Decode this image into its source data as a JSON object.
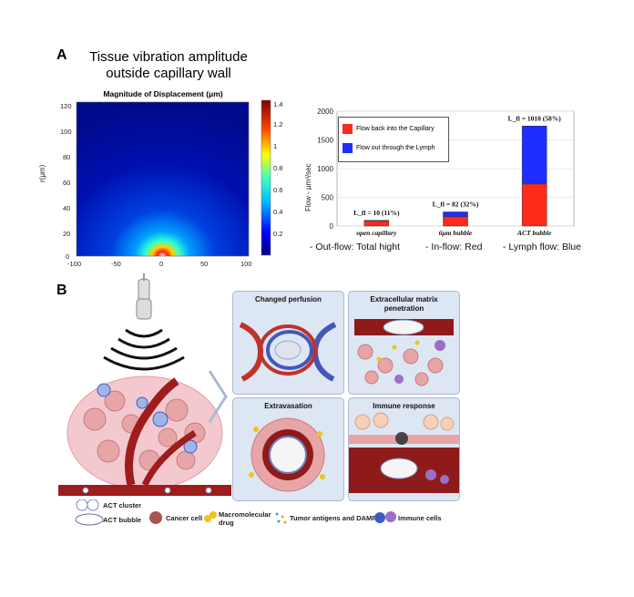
{
  "panelA": {
    "letter": "A",
    "title_line1": "Tissue vibration amplitude",
    "title_line2": "outside capillary wall",
    "heatmap": {
      "title": "Magnitude of Displacement (μm)",
      "ylabel": "r(μm)",
      "yticks": [
        "120",
        "100",
        "80",
        "60",
        "40",
        "20",
        "0"
      ],
      "xticks": [
        "-100",
        "-50",
        "0",
        "50",
        "100"
      ],
      "colorbar_ticks": [
        "1.4",
        "1.2",
        "1",
        "0.8",
        "0.6",
        "0.4",
        "0.2"
      ]
    },
    "notes": {
      "outflow": "- Out-flow: Total hight",
      "inflow": "- In-flow: Red",
      "lymph": "- Lymph flow: Blue"
    }
  },
  "chart_data": {
    "type": "bar",
    "stacked": true,
    "ylabel": "Flow  -  μm³/sec",
    "ylim": [
      0,
      2000
    ],
    "yticks": [
      "2000",
      "1500",
      "1000",
      "500",
      "0"
    ],
    "categories": [
      "open capillary",
      "6μm bubble",
      "ACT bubble"
    ],
    "series": [
      {
        "name": "Flow back into the Capillary",
        "color": "#ff2a1a",
        "values": [
          89,
          164,
          732
        ]
      },
      {
        "name": "Flow out through the Lymph",
        "color": "#1f2dff",
        "values": [
          10,
          82,
          1010
        ]
      }
    ],
    "annotations": [
      "L_fl = 10 (11%)",
      "L_fl = 82 (32%)",
      "L_fl = 1010 (58%)"
    ],
    "legend_position": "top-left",
    "grid": true
  },
  "panelB": {
    "letter": "B",
    "cards": [
      {
        "title": "Changed perfusion"
      },
      {
        "title": "Extracellular matrix penetration"
      },
      {
        "title": "Extravasation"
      },
      {
        "title": "Immune response"
      }
    ],
    "legend": {
      "act_cluster": "ACT cluster",
      "act_bubble": "ACT bubble",
      "cancer_cell": "Cancer cell",
      "macro_drug": "Macromolecular drug",
      "antigens": "Tumor antigens and DAMPs",
      "immune": "Immune cells"
    }
  }
}
